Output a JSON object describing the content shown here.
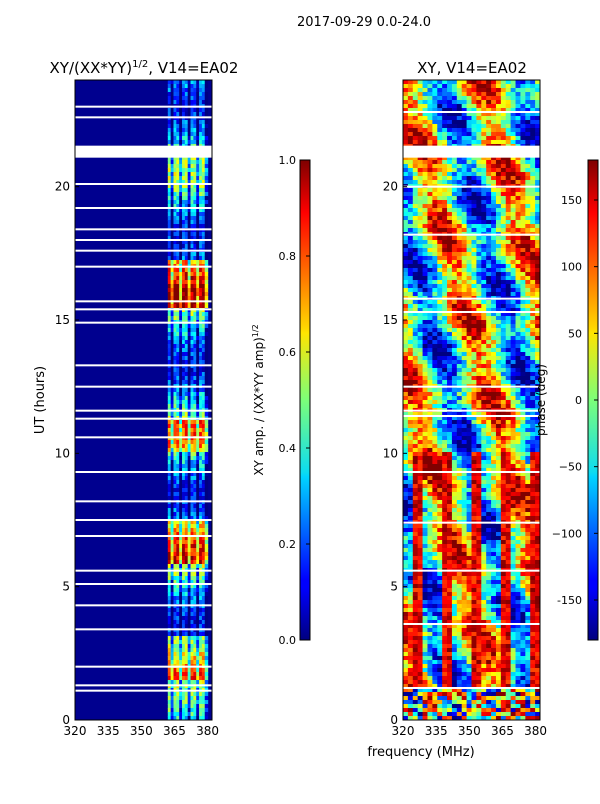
{
  "figure_title": "2017-09-29 0.0-24.0",
  "shared_xlabel": "frequency (MHz)",
  "chart_data": [
    {
      "type": "heatmap",
      "title_main": "XY/(XX*YY)",
      "title_sup": "1/2",
      "title_tail": ", V14=EA02",
      "xlabel": "",
      "ylabel": "UT (hours)",
      "xlim": [
        320,
        382
      ],
      "ylim": [
        0,
        24
      ],
      "xticks": [
        "320",
        "335",
        "350",
        "365",
        "380"
      ],
      "yticks": [
        "0",
        "5",
        "10",
        "15",
        "20"
      ],
      "colorbar": {
        "label_main": "XY amp. / (XX*YY amp)",
        "label_sup": "1/2",
        "range": [
          0.0,
          1.0
        ],
        "ticks": [
          "0.0",
          "0.2",
          "0.4",
          "0.6",
          "0.8",
          "1.0"
        ]
      },
      "bright_band_mhz": [
        362,
        380
      ],
      "gap_hours": [
        1.1,
        1.3,
        2.0,
        3.4,
        4.3,
        5.1,
        5.6,
        6.9,
        7.5,
        8.2,
        9.3,
        10.6,
        11.3,
        11.6,
        12.5,
        13.3,
        14.9,
        15.4,
        15.7,
        17.0,
        17.6,
        18.0,
        18.4,
        19.2,
        20.1,
        21.5,
        22.6,
        23.0
      ]
    },
    {
      "type": "heatmap",
      "title_main": "XY, V14=EA02",
      "xlabel": "frequency (MHz)",
      "ylabel": "",
      "xlim": [
        320,
        382
      ],
      "ylim": [
        0,
        24
      ],
      "xticks": [
        "320",
        "335",
        "350",
        "365",
        "380"
      ],
      "yticks": [
        "0",
        "5",
        "10",
        "15",
        "20"
      ],
      "colorbar": {
        "label_main": "phase (deg)",
        "range": [
          -180,
          180
        ],
        "ticks": [
          "-150",
          "−100",
          "−50",
          "0",
          "50",
          "100",
          "150"
        ]
      },
      "gap_hours": [
        1.2,
        3.6,
        5.6,
        7.4,
        9.3,
        11.4,
        11.6,
        12.5,
        15.3,
        15.8,
        18.2,
        20.0,
        21.5,
        22.8
      ]
    }
  ]
}
